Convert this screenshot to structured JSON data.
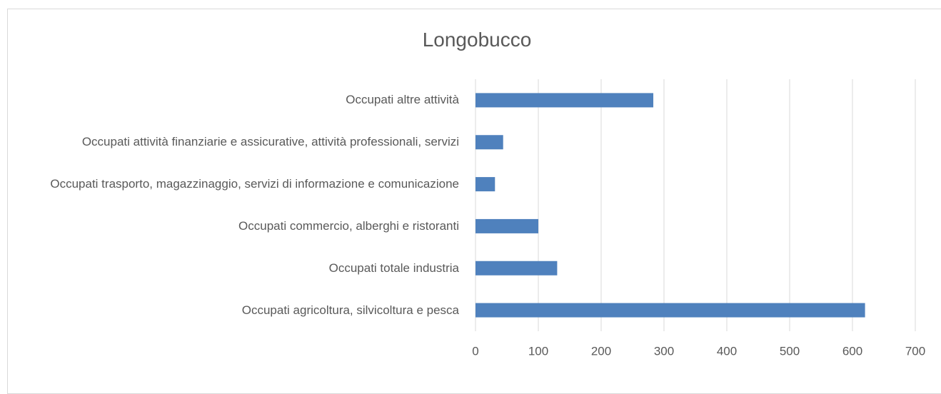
{
  "chart_data": {
    "type": "bar",
    "orientation": "horizontal",
    "title": "Longobucco",
    "categories": [
      "Occupati altre attività",
      "Occupati attività finanziarie e assicurative, attività professionali, servizi",
      "Occupati trasporto, magazzinaggio, servizi di informazione e comunicazione",
      "Occupati commercio, alberghi e ristoranti",
      "Occupati totale industria",
      "Occupati agricoltura, silvicoltura e pesca"
    ],
    "values": [
      283,
      44,
      31,
      100,
      130,
      620
    ],
    "color": "#4f81bd",
    "xlim": [
      0,
      700
    ],
    "xticks": [
      0,
      100,
      200,
      300,
      400,
      500,
      600,
      700
    ],
    "grid": true
  }
}
